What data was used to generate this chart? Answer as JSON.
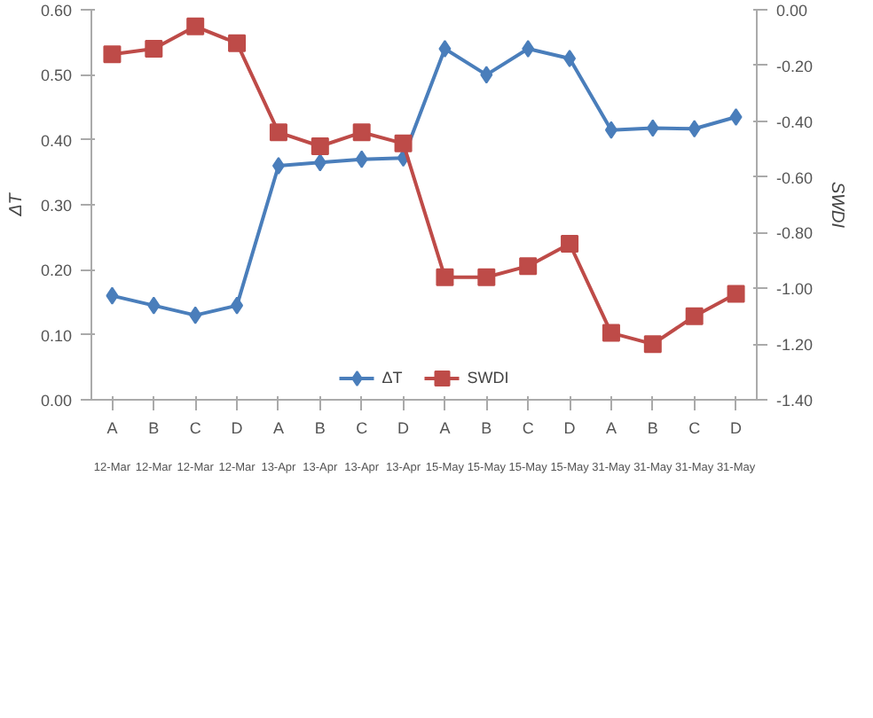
{
  "chart_data": {
    "type": "line",
    "ylabel": "ΔT",
    "y2label": "SWDI",
    "categories": [
      "A\n12-Mar",
      "B\n12-Mar",
      "C\n12-Mar",
      "D\n12-Mar",
      "A\n13-Apr",
      "B\n13-Apr",
      "C\n13-Apr",
      "D\n13-Apr",
      "A\n15-May",
      "B\n15-May",
      "C\n15-May",
      "D\n15-May",
      "A\n31-May",
      "B\n31-May",
      "C\n31-May",
      "D\n31-May"
    ],
    "series": [
      {
        "name": "ΔT",
        "color": "#4a7ebb",
        "marker": "diamond",
        "values": [
          0.16,
          0.145,
          0.13,
          0.145,
          0.36,
          0.365,
          0.37,
          0.372,
          0.54,
          0.5,
          0.54,
          0.525,
          0.415,
          0.418,
          0.417,
          0.435
        ]
      },
      {
        "name": "SWDI",
        "color": "#be4b48",
        "marker": "square",
        "axis": "y2",
        "values": [
          -0.16,
          -0.14,
          -0.06,
          -0.12,
          -0.44,
          -0.49,
          -0.44,
          -0.48,
          -0.96,
          -0.96,
          -0.92,
          -0.84,
          -1.16,
          -1.2,
          -1.1,
          -1.02
        ]
      }
    ],
    "ylim": [
      0,
      0.6
    ],
    "yticks": [
      {
        "value": 0,
        "label": "0.00"
      },
      {
        "value": 0.1,
        "label": "0.10"
      },
      {
        "value": 0.2,
        "label": "0.20"
      },
      {
        "value": 0.3,
        "label": "0.30"
      },
      {
        "value": 0.4,
        "label": "0.40"
      },
      {
        "value": 0.5,
        "label": "0.50"
      },
      {
        "value": 0.6,
        "label": "0.60"
      }
    ],
    "y2lim": [
      -1.4,
      0
    ],
    "y2ticks": [
      {
        "value": 0,
        "label": "0.00"
      },
      {
        "value": -0.2,
        "label": "-0.20"
      },
      {
        "value": -0.4,
        "label": "-0.40"
      },
      {
        "value": -0.6,
        "label": "-0.60"
      },
      {
        "value": -0.8,
        "label": "-0.80"
      },
      {
        "value": -1.0,
        "label": "-1.00"
      },
      {
        "value": -1.2,
        "label": "-1.20"
      },
      {
        "value": -1.4,
        "label": "-1.40"
      }
    ],
    "legend": "bottom",
    "grid": false,
    "line_style": "solid"
  }
}
